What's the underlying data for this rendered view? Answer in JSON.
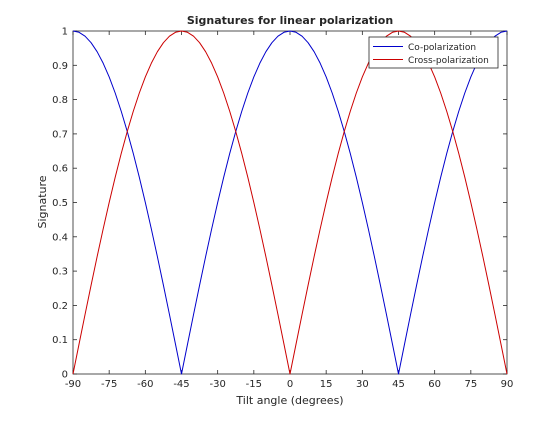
{
  "chart_data": {
    "type": "line",
    "title": "Signatures for linear polarization",
    "xlabel": "Tilt angle (degrees)",
    "ylabel": "Signature",
    "xlim": [
      -90,
      90
    ],
    "ylim": [
      0,
      1
    ],
    "x_ticks": [
      -90,
      -75,
      -60,
      -45,
      -30,
      -15,
      0,
      15,
      30,
      45,
      60,
      75,
      90
    ],
    "y_ticks": [
      0,
      0.1,
      0.2,
      0.3,
      0.4,
      0.5,
      0.6,
      0.7,
      0.8,
      0.9,
      1
    ],
    "x_tick_labels": [
      "-90",
      "-75",
      "-60",
      "-45",
      "-30",
      "-15",
      "0",
      "15",
      "30",
      "45",
      "60",
      "75",
      "90"
    ],
    "y_tick_labels": [
      "0",
      "0.1",
      "0.2",
      "0.3",
      "0.4",
      "0.5",
      "0.6",
      "0.7",
      "0.8",
      "0.9",
      "1"
    ],
    "grid": false,
    "legend_position": "top-right",
    "x": [
      -90,
      -87.5,
      -85,
      -82.5,
      -80,
      -77.5,
      -75,
      -72.5,
      -70,
      -67.5,
      -65,
      -62.5,
      -60,
      -57.5,
      -55,
      -52.5,
      -50,
      -47.5,
      -45,
      -42.5,
      -40,
      -37.5,
      -35,
      -32.5,
      -30,
      -27.5,
      -25,
      -22.5,
      -20,
      -17.5,
      -15,
      -12.5,
      -10,
      -7.5,
      -5,
      -2.5,
      0,
      2.5,
      5,
      7.5,
      10,
      12.5,
      15,
      17.5,
      20,
      22.5,
      25,
      27.5,
      30,
      32.5,
      35,
      37.5,
      40,
      42.5,
      45,
      47.5,
      50,
      52.5,
      55,
      57.5,
      60,
      62.5,
      65,
      67.5,
      70,
      72.5,
      75,
      77.5,
      80,
      82.5,
      85,
      87.5,
      90
    ],
    "series": [
      {
        "name": "Co-polarization",
        "color": "#0000cc",
        "values": [
          1.0,
          0.9962,
          0.9848,
          0.9659,
          0.9397,
          0.9063,
          0.866,
          0.8192,
          0.766,
          0.7071,
          0.6428,
          0.5736,
          0.5,
          0.4226,
          0.342,
          0.2588,
          0.1736,
          0.0872,
          0.0,
          0.0872,
          0.1736,
          0.2588,
          0.342,
          0.4226,
          0.5,
          0.5736,
          0.6428,
          0.7071,
          0.766,
          0.8192,
          0.866,
          0.9063,
          0.9397,
          0.9659,
          0.9848,
          0.9962,
          1.0,
          0.9962,
          0.9848,
          0.9659,
          0.9397,
          0.9063,
          0.866,
          0.8192,
          0.766,
          0.7071,
          0.6428,
          0.5736,
          0.5,
          0.4226,
          0.342,
          0.2588,
          0.1736,
          0.0872,
          0.0,
          0.0872,
          0.1736,
          0.2588,
          0.342,
          0.4226,
          0.5,
          0.5736,
          0.6428,
          0.7071,
          0.766,
          0.8192,
          0.866,
          0.9063,
          0.9397,
          0.9659,
          0.9848,
          0.9962,
          1.0
        ]
      },
      {
        "name": "Cross-polarization",
        "color": "#cc0000",
        "values": [
          0.0,
          0.0872,
          0.1736,
          0.2588,
          0.342,
          0.4226,
          0.5,
          0.5736,
          0.6428,
          0.7071,
          0.766,
          0.8192,
          0.866,
          0.9063,
          0.9397,
          0.9659,
          0.9848,
          0.9962,
          1.0,
          0.9962,
          0.9848,
          0.9659,
          0.9397,
          0.9063,
          0.866,
          0.8192,
          0.766,
          0.7071,
          0.6428,
          0.5736,
          0.5,
          0.4226,
          0.342,
          0.2588,
          0.1736,
          0.0872,
          0.0,
          0.0872,
          0.1736,
          0.2588,
          0.342,
          0.4226,
          0.5,
          0.5736,
          0.6428,
          0.7071,
          0.766,
          0.8192,
          0.866,
          0.9063,
          0.9397,
          0.9659,
          0.9848,
          0.9962,
          1.0,
          0.9962,
          0.9848,
          0.9659,
          0.9397,
          0.9063,
          0.866,
          0.8192,
          0.766,
          0.7071,
          0.6428,
          0.5736,
          0.5,
          0.4226,
          0.342,
          0.2588,
          0.1736,
          0.0872,
          0.0
        ]
      }
    ]
  }
}
